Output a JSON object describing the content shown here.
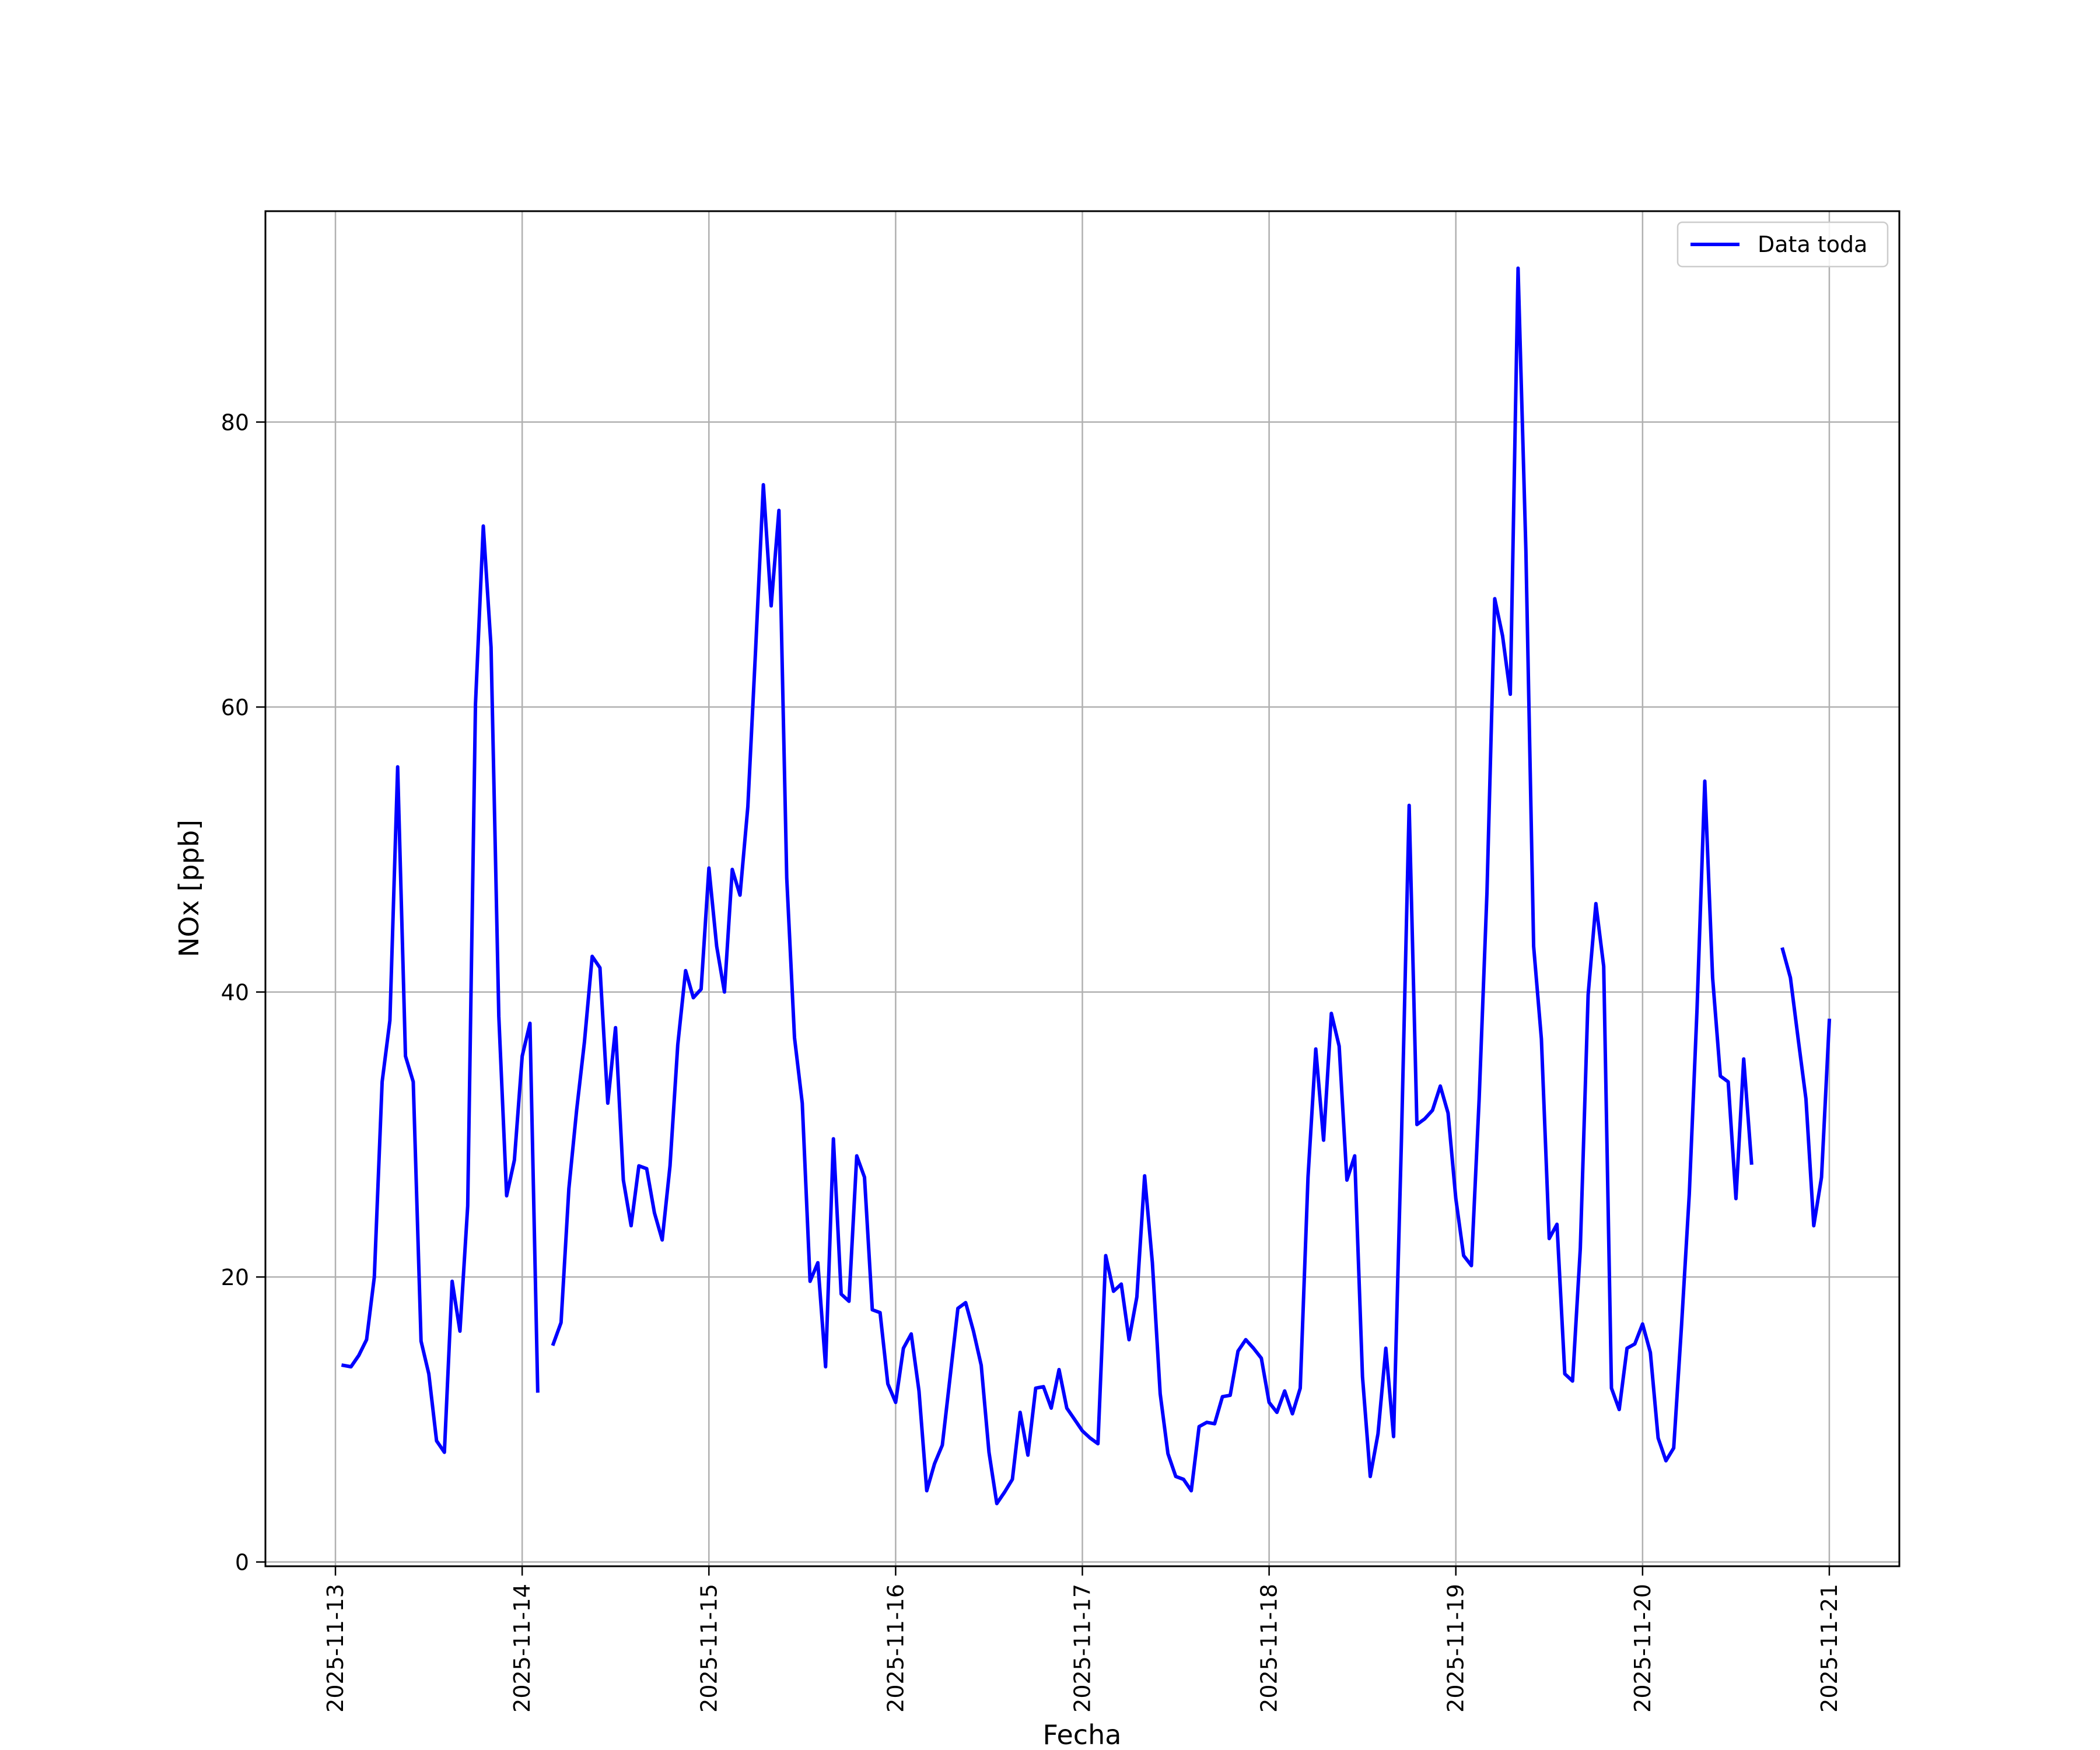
{
  "chart_data": {
    "type": "line",
    "xlabel": "Fecha",
    "ylabel": "NOx [ppb]",
    "x_axis": "date",
    "xlim": [
      "2025-11-12T15:00",
      "2025-11-21T09:00"
    ],
    "ylim": [
      -0.3,
      94.8
    ],
    "yticks": [
      0,
      20,
      40,
      60,
      80
    ],
    "xticks": [
      "2025-11-13",
      "2025-11-14",
      "2025-11-15",
      "2025-11-16",
      "2025-11-17",
      "2025-11-18",
      "2025-11-19",
      "2025-11-20",
      "2025-11-21"
    ],
    "grid": true,
    "legend_position": "top-right",
    "series": [
      {
        "name": "Data toda",
        "color": "#0000ff",
        "points": [
          [
            "2025-11-13T01:00",
            13.8
          ],
          [
            "2025-11-13T02:00",
            13.7
          ],
          [
            "2025-11-13T03:00",
            14.5
          ],
          [
            "2025-11-13T04:00",
            15.6
          ],
          [
            "2025-11-13T05:00",
            20.0
          ],
          [
            "2025-11-13T06:00",
            33.7
          ],
          [
            "2025-11-13T07:00",
            38.0
          ],
          [
            "2025-11-13T08:00",
            55.8
          ],
          [
            "2025-11-13T09:00",
            35.5
          ],
          [
            "2025-11-13T10:00",
            33.7
          ],
          [
            "2025-11-13T11:00",
            15.5
          ],
          [
            "2025-11-13T12:00",
            13.2
          ],
          [
            "2025-11-13T13:00",
            8.5
          ],
          [
            "2025-11-13T14:00",
            7.7
          ],
          [
            "2025-11-13T15:00",
            19.7
          ],
          [
            "2025-11-13T16:00",
            16.2
          ],
          [
            "2025-11-13T17:00",
            25.0
          ],
          [
            "2025-11-13T18:00",
            60.2
          ],
          [
            "2025-11-13T19:00",
            72.7
          ],
          [
            "2025-11-13T20:00",
            64.2
          ],
          [
            "2025-11-13T21:00",
            38.3
          ],
          [
            "2025-11-13T22:00",
            25.7
          ],
          [
            "2025-11-13T23:00",
            28.2
          ],
          [
            "2025-11-14T00:00",
            35.5
          ],
          [
            "2025-11-14T01:00",
            37.8
          ],
          [
            "2025-11-14T02:00",
            12.0
          ],
          null,
          [
            "2025-11-14T04:00",
            15.3
          ],
          [
            "2025-11-14T05:00",
            16.8
          ],
          [
            "2025-11-14T06:00",
            26.2
          ],
          [
            "2025-11-14T07:00",
            31.7
          ],
          [
            "2025-11-14T08:00",
            36.5
          ],
          [
            "2025-11-14T09:00",
            42.5
          ],
          [
            "2025-11-14T10:00",
            41.7
          ],
          [
            "2025-11-14T11:00",
            32.2
          ],
          [
            "2025-11-14T12:00",
            37.5
          ],
          [
            "2025-11-14T13:00",
            26.8
          ],
          [
            "2025-11-14T14:00",
            23.6
          ],
          [
            "2025-11-14T15:00",
            27.8
          ],
          [
            "2025-11-14T16:00",
            27.6
          ],
          [
            "2025-11-14T17:00",
            24.5
          ],
          [
            "2025-11-14T18:00",
            22.6
          ],
          [
            "2025-11-14T19:00",
            27.8
          ],
          [
            "2025-11-14T20:00",
            36.3
          ],
          [
            "2025-11-14T21:00",
            41.5
          ],
          [
            "2025-11-14T22:00",
            39.6
          ],
          [
            "2025-11-14T23:00",
            40.2
          ],
          [
            "2025-11-15T00:00",
            48.7
          ],
          [
            "2025-11-15T01:00",
            43.2
          ],
          [
            "2025-11-15T02:00",
            40.0
          ],
          [
            "2025-11-15T03:00",
            48.6
          ],
          [
            "2025-11-15T04:00",
            46.8
          ],
          [
            "2025-11-15T05:00",
            53.0
          ],
          [
            "2025-11-15T06:00",
            64.0
          ],
          [
            "2025-11-15T07:00",
            75.6
          ],
          [
            "2025-11-15T08:00",
            67.1
          ],
          [
            "2025-11-15T09:00",
            73.8
          ],
          [
            "2025-11-15T10:00",
            48.0
          ],
          [
            "2025-11-15T11:00",
            36.8
          ],
          [
            "2025-11-15T12:00",
            32.2
          ],
          [
            "2025-11-15T13:00",
            19.7
          ],
          [
            "2025-11-15T14:00",
            21.0
          ],
          [
            "2025-11-15T15:00",
            13.7
          ],
          [
            "2025-11-15T16:00",
            29.7
          ],
          [
            "2025-11-15T17:00",
            18.8
          ],
          [
            "2025-11-15T18:00",
            18.3
          ],
          [
            "2025-11-15T19:00",
            28.5
          ],
          [
            "2025-11-15T20:00",
            27.0
          ],
          [
            "2025-11-15T21:00",
            17.7
          ],
          [
            "2025-11-15T22:00",
            17.5
          ],
          [
            "2025-11-15T23:00",
            12.5
          ],
          [
            "2025-11-16T00:00",
            11.2
          ],
          [
            "2025-11-16T01:00",
            15.0
          ],
          [
            "2025-11-16T02:00",
            16.0
          ],
          [
            "2025-11-16T03:00",
            12.0
          ],
          [
            "2025-11-16T04:00",
            5.0
          ],
          [
            "2025-11-16T05:00",
            6.9
          ],
          [
            "2025-11-16T06:00",
            8.2
          ],
          [
            "2025-11-16T07:00",
            13.0
          ],
          [
            "2025-11-16T08:00",
            17.8
          ],
          [
            "2025-11-16T09:00",
            18.2
          ],
          [
            "2025-11-16T10:00",
            16.2
          ],
          [
            "2025-11-16T11:00",
            13.8
          ],
          [
            "2025-11-16T12:00",
            7.7
          ],
          [
            "2025-11-16T13:00",
            4.1
          ],
          [
            "2025-11-16T14:00",
            4.9
          ],
          [
            "2025-11-16T15:00",
            5.8
          ],
          [
            "2025-11-16T16:00",
            10.5
          ],
          [
            "2025-11-16T17:00",
            7.5
          ],
          [
            "2025-11-16T18:00",
            12.2
          ],
          [
            "2025-11-16T19:00",
            12.3
          ],
          [
            "2025-11-16T20:00",
            10.8
          ],
          [
            "2025-11-16T21:00",
            13.5
          ],
          [
            "2025-11-16T22:00",
            10.8
          ],
          [
            "2025-11-16T23:00",
            10.0
          ],
          [
            "2025-11-17T00:00",
            9.2
          ],
          [
            "2025-11-17T01:00",
            8.7
          ],
          [
            "2025-11-17T02:00",
            8.3
          ],
          [
            "2025-11-17T03:00",
            21.5
          ],
          [
            "2025-11-17T04:00",
            19.0
          ],
          [
            "2025-11-17T05:00",
            19.5
          ],
          [
            "2025-11-17T06:00",
            15.6
          ],
          [
            "2025-11-17T07:00",
            18.6
          ],
          [
            "2025-11-17T08:00",
            27.1
          ],
          [
            "2025-11-17T09:00",
            21.0
          ],
          [
            "2025-11-17T10:00",
            11.8
          ],
          [
            "2025-11-17T11:00",
            7.6
          ],
          [
            "2025-11-17T12:00",
            6.0
          ],
          [
            "2025-11-17T13:00",
            5.8
          ],
          [
            "2025-11-17T14:00",
            5.0
          ],
          [
            "2025-11-17T15:00",
            9.5
          ],
          [
            "2025-11-17T16:00",
            9.8
          ],
          [
            "2025-11-17T17:00",
            9.7
          ],
          [
            "2025-11-17T18:00",
            11.6
          ],
          [
            "2025-11-17T19:00",
            11.7
          ],
          [
            "2025-11-17T20:00",
            14.8
          ],
          [
            "2025-11-17T21:00",
            15.6
          ],
          [
            "2025-11-17T22:00",
            15.0
          ],
          [
            "2025-11-17T23:00",
            14.3
          ],
          [
            "2025-11-18T00:00",
            11.2
          ],
          [
            "2025-11-18T01:00",
            10.5
          ],
          [
            "2025-11-18T02:00",
            12.0
          ],
          [
            "2025-11-18T03:00",
            10.4
          ],
          [
            "2025-11-18T04:00",
            12.2
          ],
          [
            "2025-11-18T05:00",
            27.0
          ],
          [
            "2025-11-18T06:00",
            36.0
          ],
          [
            "2025-11-18T07:00",
            29.6
          ],
          [
            "2025-11-18T08:00",
            38.5
          ],
          [
            "2025-11-18T09:00",
            36.2
          ],
          [
            "2025-11-18T10:00",
            26.8
          ],
          [
            "2025-11-18T11:00",
            28.5
          ],
          [
            "2025-11-18T12:00",
            13.0
          ],
          [
            "2025-11-18T13:00",
            6.0
          ],
          [
            "2025-11-18T14:00",
            9.0
          ],
          [
            "2025-11-18T15:00",
            15.0
          ],
          [
            "2025-11-18T16:00",
            8.8
          ],
          [
            "2025-11-18T17:00",
            29.5
          ],
          [
            "2025-11-18T18:00",
            53.1
          ],
          [
            "2025-11-18T19:00",
            30.7
          ],
          [
            "2025-11-18T20:00",
            31.1
          ],
          [
            "2025-11-18T21:00",
            31.7
          ],
          [
            "2025-11-18T22:00",
            33.4
          ],
          [
            "2025-11-18T23:00",
            31.5
          ],
          [
            "2025-11-19T00:00",
            25.5
          ],
          [
            "2025-11-19T01:00",
            21.5
          ],
          [
            "2025-11-19T02:00",
            20.8
          ],
          [
            "2025-11-19T03:00",
            32.5
          ],
          [
            "2025-11-19T04:00",
            47.0
          ],
          [
            "2025-11-19T05:00",
            67.6
          ],
          [
            "2025-11-19T06:00",
            65.0
          ],
          [
            "2025-11-19T07:00",
            60.9
          ],
          [
            "2025-11-19T08:00",
            90.8
          ],
          [
            "2025-11-19T09:00",
            71.0
          ],
          [
            "2025-11-19T10:00",
            43.2
          ],
          [
            "2025-11-19T11:00",
            36.7
          ],
          [
            "2025-11-19T12:00",
            22.7
          ],
          [
            "2025-11-19T13:00",
            23.7
          ],
          [
            "2025-11-19T14:00",
            13.2
          ],
          [
            "2025-11-19T15:00",
            12.7
          ],
          [
            "2025-11-19T16:00",
            22.0
          ],
          [
            "2025-11-19T17:00",
            39.8
          ],
          [
            "2025-11-19T18:00",
            46.2
          ],
          [
            "2025-11-19T19:00",
            41.8
          ],
          [
            "2025-11-19T20:00",
            12.2
          ],
          [
            "2025-11-19T21:00",
            10.7
          ],
          [
            "2025-11-19T22:00",
            15.0
          ],
          [
            "2025-11-19T23:00",
            15.3
          ],
          [
            "2025-11-20T00:00",
            16.7
          ],
          [
            "2025-11-20T01:00",
            14.7
          ],
          [
            "2025-11-20T02:00",
            8.7
          ],
          [
            "2025-11-20T03:00",
            7.1
          ],
          [
            "2025-11-20T04:00",
            8.0
          ],
          [
            "2025-11-20T05:00",
            16.5
          ],
          [
            "2025-11-20T06:00",
            25.8
          ],
          [
            "2025-11-20T07:00",
            38.8
          ],
          [
            "2025-11-20T08:00",
            54.8
          ],
          [
            "2025-11-20T09:00",
            41.0
          ],
          [
            "2025-11-20T10:00",
            34.1
          ],
          [
            "2025-11-20T11:00",
            33.7
          ],
          [
            "2025-11-20T12:00",
            25.5
          ],
          [
            "2025-11-20T13:00",
            35.3
          ],
          [
            "2025-11-20T14:00",
            28.0
          ],
          null,
          [
            "2025-11-20T18:00",
            43.0
          ],
          [
            "2025-11-20T19:00",
            41.0
          ],
          [
            "2025-11-20T20:00",
            36.7
          ],
          [
            "2025-11-20T21:00",
            32.5
          ],
          [
            "2025-11-20T22:00",
            23.6
          ],
          [
            "2025-11-20T23:00",
            27.0
          ],
          [
            "2025-11-21T00:00",
            38.0
          ]
        ]
      }
    ]
  }
}
